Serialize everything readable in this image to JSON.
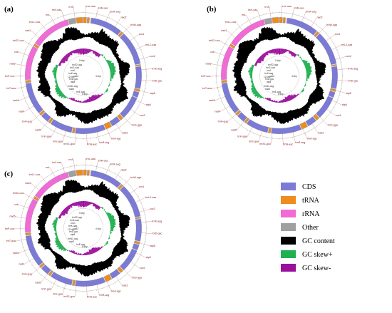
{
  "panels": [
    {
      "label": "(a)"
    },
    {
      "label": "(b)"
    },
    {
      "label": "(c)"
    }
  ],
  "gene_labels": [
    "trnL-uaa",
    "trnM-auc",
    "trnM-aug",
    "nad2",
    "trnW-uga",
    "cox1",
    "trnL2-uaa",
    "cox2",
    "trnK-aag",
    "trnD-guc",
    "atp8",
    "atp6",
    "cox3",
    "trnG-gga",
    "nad3",
    "trnA-agc",
    "trnR-acg",
    "trnN-aac",
    "trnS1-gcu",
    "trnE-gaa",
    "trnF-gaa",
    "nad5",
    "trnH-gug",
    "nad4",
    "nad4l",
    "trnT-aca",
    "trnP-cca",
    "nad6",
    "cob",
    "trnS2-uca",
    "nad1",
    "trnL1-cua",
    "rrnL",
    "trnV-uac",
    "rrnS"
  ],
  "inner_labels": [
    "trnS2-uga",
    "trnI2-uaa",
    "cox1",
    "trnK-aag",
    "nad2",
    "0 kbp",
    "trnD-guc",
    "atp8",
    "trnN1-cag",
    "nad3",
    "trnE-cag",
    "4 kbp",
    "8 kbp",
    "12 kbp"
  ],
  "legend": [
    {
      "label": "CDS",
      "color": "#7b7bd6"
    },
    {
      "label": "tRNA",
      "color": "#ee8c1e"
    },
    {
      "label": "rRNA",
      "color": "#f06bd6"
    },
    {
      "label": "Other",
      "color": "#a0a0a0"
    },
    {
      "label": "GC content",
      "color": "#000000"
    },
    {
      "label": "GC skew+",
      "color": "#20b050"
    },
    {
      "label": "GC skew-",
      "color": "#9b109b"
    }
  ]
}
